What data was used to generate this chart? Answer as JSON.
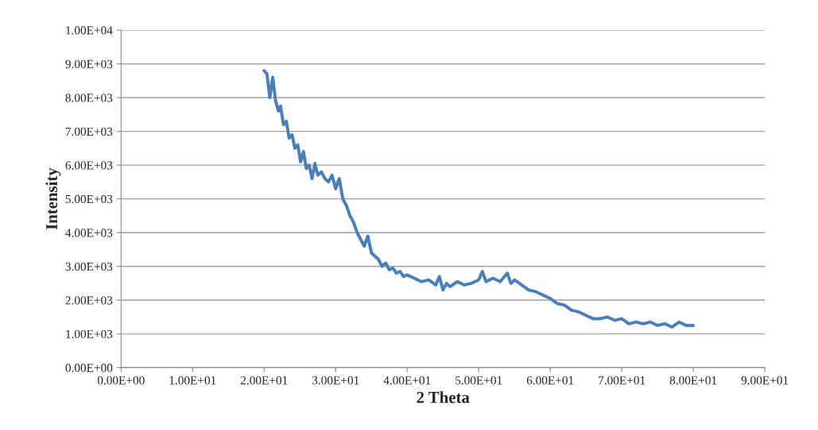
{
  "chart_data": {
    "type": "line",
    "xlabel": "2 Theta",
    "ylabel": "Intensity",
    "xlim": [
      0,
      90
    ],
    "ylim": [
      0,
      10000
    ],
    "xticks": [
      {
        "value": 0,
        "label": "0.00E+00"
      },
      {
        "value": 10,
        "label": "1.00E+01"
      },
      {
        "value": 20,
        "label": "2.00E+01"
      },
      {
        "value": 30,
        "label": "3.00E+01"
      },
      {
        "value": 40,
        "label": "4.00E+01"
      },
      {
        "value": 50,
        "label": "5.00E+01"
      },
      {
        "value": 60,
        "label": "6.00E+01"
      },
      {
        "value": 70,
        "label": "7.00E+01"
      },
      {
        "value": 80,
        "label": "8.00E+01"
      },
      {
        "value": 90,
        "label": "9.00E+01"
      }
    ],
    "yticks": [
      {
        "value": 0,
        "label": "0.00E+00"
      },
      {
        "value": 1000,
        "label": "1.00E+03"
      },
      {
        "value": 2000,
        "label": "2.00E+03"
      },
      {
        "value": 3000,
        "label": "3.00E+03"
      },
      {
        "value": 4000,
        "label": "4.00E+03"
      },
      {
        "value": 5000,
        "label": "5.00E+03"
      },
      {
        "value": 6000,
        "label": "6.00E+03"
      },
      {
        "value": 7000,
        "label": "7.00E+03"
      },
      {
        "value": 8000,
        "label": "8.00E+03"
      },
      {
        "value": 9000,
        "label": "9.00E+03"
      },
      {
        "value": 10000,
        "label": "1.00E+04"
      }
    ],
    "grid": "y",
    "marker": "none",
    "line_style": "solid",
    "series": [
      {
        "color": "#4a7ebb",
        "x": [
          20.0,
          20.4,
          20.8,
          21.2,
          21.6,
          22.0,
          22.3,
          22.7,
          23.1,
          23.5,
          23.9,
          24.3,
          24.7,
          25.1,
          25.5,
          25.9,
          26.3,
          26.7,
          27.1,
          27.5,
          28.0,
          28.5,
          29.0,
          29.5,
          30.0,
          30.5,
          31.0,
          31.5,
          32.0,
          32.5,
          33.0,
          33.5,
          34.0,
          34.5,
          35.0,
          35.5,
          36.0,
          36.5,
          37.0,
          37.5,
          38.0,
          38.5,
          39.0,
          39.5,
          40.0,
          41,
          42,
          43,
          44,
          44.5,
          45,
          45.5,
          46,
          47,
          48,
          49,
          50,
          50.5,
          51,
          52,
          53,
          54,
          54.5,
          55,
          56,
          57,
          58,
          59,
          60,
          61,
          62,
          63,
          64,
          65,
          66,
          67,
          68,
          69,
          70,
          71,
          72,
          73,
          74,
          75,
          76,
          77,
          78,
          79,
          80
        ],
        "values": [
          8800,
          8700,
          8000,
          8600,
          7900,
          7600,
          7750,
          7200,
          7300,
          6800,
          6900,
          6500,
          6600,
          6100,
          6400,
          5900,
          6000,
          5600,
          6050,
          5700,
          5800,
          5600,
          5500,
          5700,
          5300,
          5600,
          5000,
          4800,
          4500,
          4300,
          4000,
          3800,
          3600,
          3900,
          3400,
          3300,
          3200,
          3000,
          3100,
          2900,
          2950,
          2800,
          2850,
          2700,
          2750,
          2650,
          2550,
          2600,
          2450,
          2700,
          2300,
          2500,
          2400,
          2550,
          2450,
          2500,
          2600,
          2850,
          2550,
          2650,
          2550,
          2800,
          2500,
          2600,
          2450,
          2300,
          2250,
          2150,
          2050,
          1900,
          1850,
          1700,
          1650,
          1550,
          1450,
          1450,
          1500,
          1400,
          1450,
          1300,
          1350,
          1300,
          1350,
          1250,
          1300,
          1200,
          1350,
          1250,
          1250
        ]
      }
    ]
  }
}
